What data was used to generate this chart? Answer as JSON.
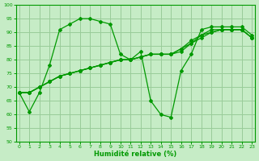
{
  "xlabel": "Humidité relative (%)",
  "xlim": [
    -0.3,
    23.3
  ],
  "ylim": [
    50,
    100
  ],
  "xticks": [
    0,
    1,
    2,
    3,
    4,
    5,
    6,
    7,
    8,
    9,
    10,
    11,
    12,
    13,
    14,
    15,
    16,
    17,
    18,
    19,
    20,
    21,
    22,
    23
  ],
  "yticks": [
    50,
    55,
    60,
    65,
    70,
    75,
    80,
    85,
    90,
    95,
    100
  ],
  "bg_color": "#c6ecc6",
  "grid_color": "#99cc99",
  "line_color": "#009900",
  "lines": [
    [
      68,
      61,
      68,
      78,
      91,
      93,
      95,
      95,
      94,
      93,
      82,
      80,
      83,
      65,
      60,
      59,
      76,
      82,
      91,
      92,
      92,
      92,
      92,
      89
    ],
    [
      68,
      68,
      70,
      72,
      74,
      75,
      76,
      77,
      78,
      79,
      80,
      80,
      81,
      82,
      82,
      82,
      83,
      86,
      88,
      90,
      91,
      91,
      91,
      88
    ],
    [
      68,
      68,
      70,
      72,
      74,
      75,
      76,
      77,
      78,
      79,
      80,
      80,
      81,
      82,
      82,
      82,
      84,
      86,
      89,
      90,
      91,
      91,
      91,
      88
    ],
    [
      68,
      68,
      70,
      72,
      74,
      75,
      76,
      77,
      78,
      79,
      80,
      80,
      81,
      82,
      82,
      82,
      84,
      87,
      89,
      91,
      91,
      91,
      91,
      88
    ]
  ]
}
